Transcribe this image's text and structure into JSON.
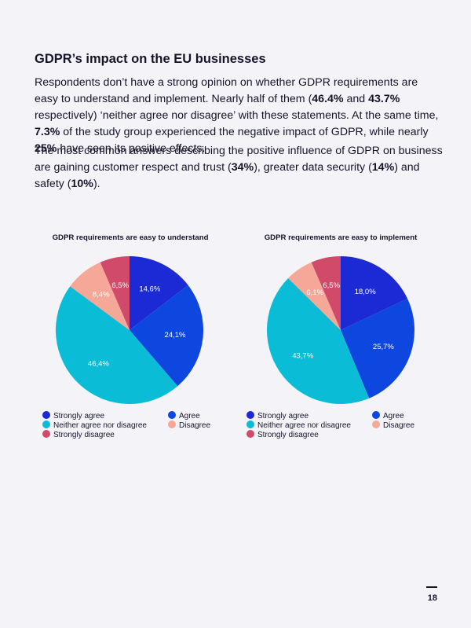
{
  "heading": "GDPR’s impact on the EU businesses",
  "paragraph1": [
    {
      "text": "Respondents don’t have a strong opinion on whether GDPR requirements are easy to understand and implement. Nearly half of them (",
      "bold": false
    },
    {
      "text": "46.4%",
      "bold": true
    },
    {
      "text": " and ",
      "bold": false
    },
    {
      "text": "43.7%",
      "bold": true
    },
    {
      "text": " respectively) ‘neither agree nor disagree’ with these statements. At the same time, ",
      "bold": false
    },
    {
      "text": "7.3%",
      "bold": true
    },
    {
      "text": " of the study group experienced the negative impact of GDPR, while nearly ",
      "bold": false
    },
    {
      "text": "25%",
      "bold": true
    },
    {
      "text": " have seen its positive effects.",
      "bold": false
    }
  ],
  "paragraph2": [
    {
      "text": "The most common answers describing the positive influence of GDPR on business are gaining customer respect and trust (",
      "bold": false
    },
    {
      "text": "34%",
      "bold": true
    },
    {
      "text": "), greater data security (",
      "bold": false
    },
    {
      "text": "14%",
      "bold": true
    },
    {
      "text": ") and safety (",
      "bold": false
    },
    {
      "text": "10%",
      "bold": true
    },
    {
      "text": ").",
      "bold": false
    }
  ],
  "chart_data": [
    {
      "type": "pie",
      "title": "GDPR requirements are easy to understand",
      "categories": [
        "Strongly agree",
        "Agree",
        "Neither agree nor disagree",
        "Disagree",
        "Strongly disagree"
      ],
      "values": [
        14.6,
        24.1,
        46.4,
        8.4,
        6.5
      ],
      "data_labels": [
        "14,6%",
        "24,1%",
        "46,4%",
        "8,4%",
        "6,5%"
      ],
      "colors": [
        "#1c2ad6",
        "#0e46e0",
        "#0bbcd6",
        "#f5a898",
        "#d24a6a"
      ],
      "legend_placement": "bottom"
    },
    {
      "type": "pie",
      "title": "GDPR requirements are easy to implement",
      "categories": [
        "Strongly agree",
        "Agree",
        "Neither agree nor disagree",
        "Disagree",
        "Strongly disagree"
      ],
      "values": [
        18.0,
        25.7,
        43.7,
        6.1,
        6.5
      ],
      "data_labels": [
        "18,0%",
        "25,7%",
        "43,7%",
        "6,1%",
        "6,5%"
      ],
      "colors": [
        "#1c2ad6",
        "#0e46e0",
        "#0bbcd6",
        "#f5a898",
        "#d24a6a"
      ],
      "legend_placement": "bottom"
    }
  ],
  "page_number": "18"
}
